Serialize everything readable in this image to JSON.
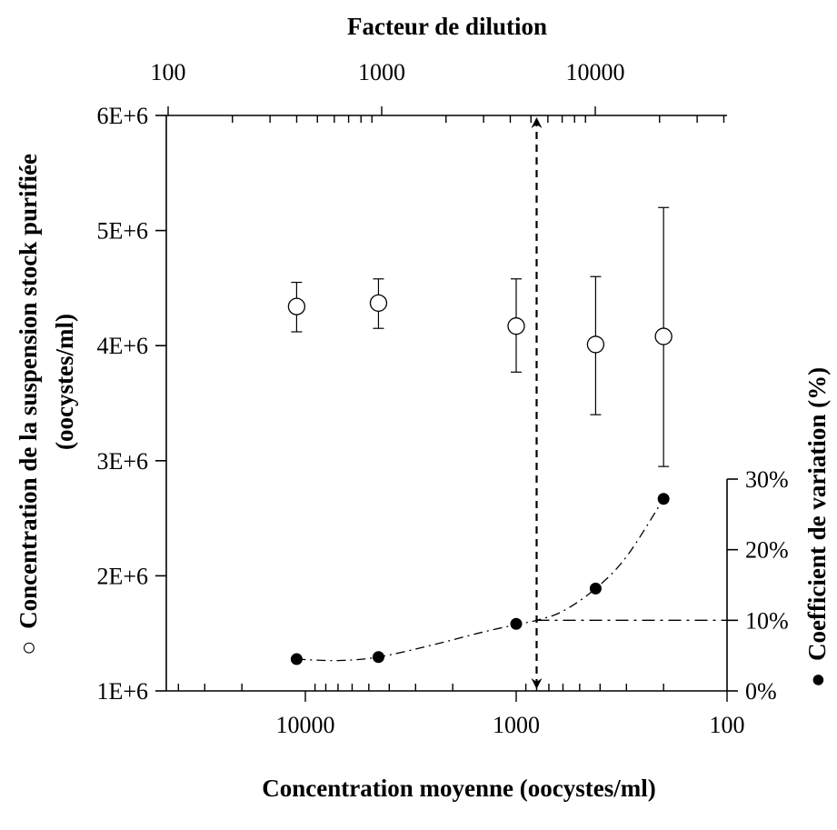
{
  "chart_data": {
    "type": "scatter",
    "title_top_axis": "Facteur de dilution",
    "xlabel": "Concentration moyenne (oocystes/ml)",
    "ylabel_left_marker": "○",
    "ylabel_left_line1": "Concentration de la suspension stock purifiée",
    "ylabel_left_line2": "(oocystes/ml)",
    "ylabel_right_marker": "●",
    "ylabel_right": "Coefficient de variation (%)",
    "x_bottom": {
      "scale": "log",
      "reversed": true,
      "range": [
        50000,
        100
      ],
      "ticks": [
        10000,
        1000,
        100
      ],
      "tick_labels": [
        "10000",
        "1000",
        "100"
      ]
    },
    "x_top": {
      "scale": "log",
      "range": [
        100,
        50000
      ],
      "ticks": [
        100,
        1000,
        10000
      ],
      "tick_labels": [
        "100",
        "1000",
        "10000"
      ]
    },
    "y_left": {
      "range": [
        1000000,
        6000000
      ],
      "ticks": [
        1000000,
        2000000,
        3000000,
        4000000,
        5000000,
        6000000
      ],
      "tick_labels": [
        "1E+6",
        "2E+6",
        "3E+6",
        "4E+6",
        "5E+6",
        "6E+6"
      ]
    },
    "y_right": {
      "range": [
        0,
        30
      ],
      "ticks": [
        0,
        10,
        20,
        30
      ],
      "tick_labels": [
        "0%",
        "10%",
        "20%",
        "30%"
      ]
    },
    "series": [
      {
        "marker": "open-circle",
        "axis": "left",
        "points": [
          {
            "x": 11000,
            "y": 4340000,
            "err_low": 4120000,
            "err_high": 4550000
          },
          {
            "x": 4500,
            "y": 4370000,
            "err_low": 4150000,
            "err_high": 4580000
          },
          {
            "x": 1000,
            "y": 4170000,
            "err_low": 3770000,
            "err_high": 4580000
          },
          {
            "x": 420,
            "y": 4010000,
            "err_low": 3400000,
            "err_high": 4600000
          },
          {
            "x": 200,
            "y": 4080000,
            "err_low": 2950000,
            "err_high": 5200000
          }
        ]
      },
      {
        "marker": "filled-circle",
        "axis": "right",
        "points": [
          {
            "x": 11000,
            "y": 4.5
          },
          {
            "x": 4500,
            "y": 4.8
          },
          {
            "x": 1000,
            "y": 9.5
          },
          {
            "x": 420,
            "y": 14.5
          },
          {
            "x": 200,
            "y": 27.2
          }
        ]
      }
    ],
    "trend_curve_right": [
      {
        "x": 11000,
        "y": 4.5
      },
      {
        "x": 7000,
        "y": 4.3
      },
      {
        "x": 4500,
        "y": 4.8
      },
      {
        "x": 2500,
        "y": 6.5
      },
      {
        "x": 1500,
        "y": 8.2
      },
      {
        "x": 1000,
        "y": 9.4
      },
      {
        "x": 800,
        "y": 10.0
      },
      {
        "x": 600,
        "y": 11.3
      },
      {
        "x": 420,
        "y": 14.5
      },
      {
        "x": 300,
        "y": 19.0
      },
      {
        "x": 200,
        "y": 27.2
      }
    ],
    "threshold": {
      "y_right": 10,
      "x_bottom": 800
    }
  }
}
